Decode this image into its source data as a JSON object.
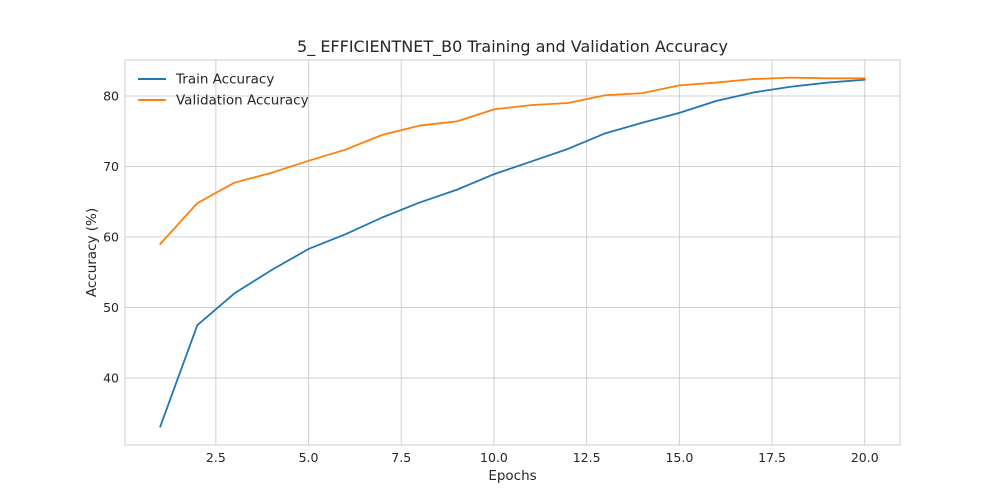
{
  "chart_data": {
    "type": "line",
    "title": "5_ EFFICIENTNET_B0 Training and Validation Accuracy",
    "xlabel": "Epochs",
    "ylabel": "Accuracy (%)",
    "xlim": [
      0.05,
      20.95
    ],
    "ylim": [
      30.5,
      85.1
    ],
    "xticks": [
      2.5,
      5.0,
      7.5,
      10.0,
      12.5,
      15.0,
      17.5,
      20.0
    ],
    "xtick_labels": [
      "2.5",
      "5.0",
      "7.5",
      "10.0",
      "12.5",
      "15.0",
      "17.5",
      "20.0"
    ],
    "yticks": [
      40,
      50,
      60,
      70,
      80
    ],
    "ytick_labels": [
      "40",
      "50",
      "60",
      "70",
      "80"
    ],
    "grid": true,
    "legend_position": "top-left",
    "x": [
      1,
      2,
      3,
      4,
      5,
      6,
      7,
      8,
      9,
      10,
      11,
      12,
      13,
      14,
      15,
      16,
      17,
      18,
      19,
      20
    ],
    "series": [
      {
        "name": "Train Accuracy",
        "color": "#1f77b4",
        "values": [
          33.1,
          47.5,
          52.0,
          55.3,
          58.3,
          60.4,
          62.8,
          64.9,
          66.7,
          68.9,
          70.7,
          72.5,
          74.7,
          76.2,
          77.6,
          79.3,
          80.5,
          81.3,
          81.9,
          82.3
        ]
      },
      {
        "name": "Validation Accuracy",
        "color": "#ff7f0e",
        "values": [
          59.0,
          64.8,
          67.7,
          69.1,
          70.8,
          72.4,
          74.5,
          75.8,
          76.4,
          78.1,
          78.7,
          79.0,
          80.1,
          80.4,
          81.5,
          81.9,
          82.4,
          82.6,
          82.5,
          82.5
        ]
      }
    ]
  }
}
